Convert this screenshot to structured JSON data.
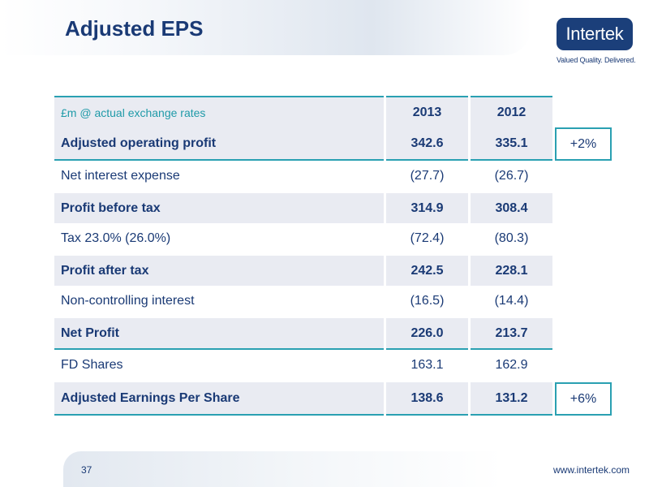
{
  "slide": {
    "title": "Adjusted EPS",
    "logo_text": "Intertek",
    "tagline": "Valued Quality. Delivered.",
    "page_number": "37",
    "url": "www.intertek.com"
  },
  "table": {
    "header": {
      "label": "£m @ actual exchange rates",
      "col1": "2013",
      "col2": "2012"
    },
    "rows": [
      {
        "label": "Adjusted operating profit",
        "v2013": "342.6",
        "v2012": "335.1",
        "change": "+2%"
      },
      {
        "label": "Net interest expense",
        "v2013": "(27.7)",
        "v2012": "(26.7)"
      },
      {
        "label": "Profit before tax",
        "v2013": "314.9",
        "v2012": "308.4"
      },
      {
        "label": "Tax 23.0% (26.0%)",
        "v2013": "(72.4)",
        "v2012": "(80.3)"
      },
      {
        "label": "Profit after tax",
        "v2013": "242.5",
        "v2012": "228.1"
      },
      {
        "label": "Non-controlling interest",
        "v2013": "(16.5)",
        "v2012": "(14.4)"
      },
      {
        "label": "Net Profit",
        "v2013": "226.0",
        "v2012": "213.7"
      },
      {
        "label": "FD Shares",
        "v2013": "163.1",
        "v2012": "162.9"
      },
      {
        "label": "Adjusted Earnings Per Share",
        "v2013": "138.6",
        "v2012": "131.2",
        "change": "+6%"
      }
    ]
  },
  "colors": {
    "navy": "#1a3a75",
    "teal": "#2aa0b2",
    "row_shade": "#e9ebf2",
    "logo_bg": "#1b3f7a"
  }
}
